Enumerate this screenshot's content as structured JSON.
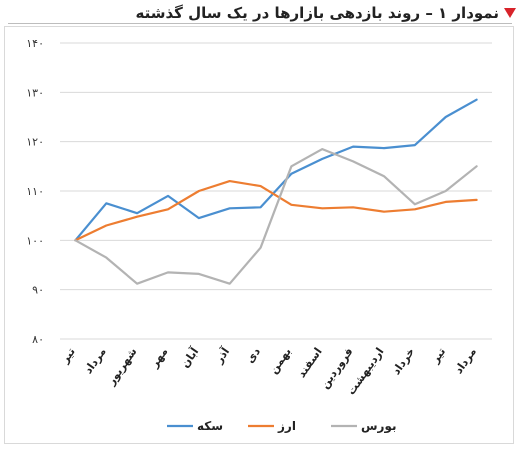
{
  "header": {
    "title": "نمودار ۱ – روند بازدهی بازارها در یک سال گذشته"
  },
  "chart_data": {
    "type": "line",
    "categories": [
      "تیر",
      "مرداد",
      "شهریور",
      "مهر",
      "آبان",
      "آذر",
      "دی",
      "بهمن",
      "اسفند",
      "فروردین",
      "اردیبهشت",
      "خرداد",
      "تیر",
      "مرداد"
    ],
    "y_tick_labels": [
      "۸۰",
      "۹۰",
      "۱۰۰",
      "۱۱۰",
      "۱۲۰",
      "۱۳۰",
      "۱۴۰"
    ],
    "ylim": [
      80,
      140
    ],
    "y_ticks": [
      80,
      90,
      100,
      110,
      120,
      130,
      140
    ],
    "grid": true,
    "legend_position": "bottom",
    "series": [
      {
        "name": "سکه",
        "color": "#4a8fd0",
        "values": [
          100,
          107.5,
          105.5,
          109,
          104.5,
          106.5,
          106.7,
          113.5,
          116.5,
          119,
          118.7,
          119.3,
          125,
          128.5
        ]
      },
      {
        "name": "ارز",
        "color": "#ed7d31",
        "values": [
          100,
          103,
          104.8,
          106.3,
          110,
          112,
          111,
          107.2,
          106.5,
          106.7,
          105.8,
          106.3,
          107.8,
          108.2
        ]
      },
      {
        "name": "بورس",
        "color": "#b3b3b3",
        "values": [
          100,
          96.5,
          91.2,
          93.5,
          93.2,
          91.2,
          98.5,
          115,
          118.5,
          116,
          113,
          107.3,
          110,
          115
        ]
      }
    ]
  }
}
